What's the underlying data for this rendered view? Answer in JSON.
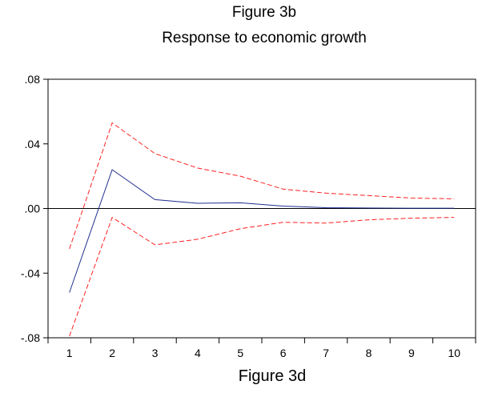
{
  "chart_data": {
    "type": "line",
    "title": "Figure 3b",
    "subtitle": "Response to economic growth",
    "footer": "Figure 3d",
    "x": [
      1,
      2,
      3,
      4,
      5,
      6,
      7,
      8,
      9,
      10
    ],
    "x_tick_labels": [
      "1",
      "2",
      "3",
      "4",
      "5",
      "6",
      "7",
      "8",
      "9",
      "10"
    ],
    "y_tick_labels": [
      ".08",
      ".04",
      ".00",
      "-.04",
      "-.08"
    ],
    "y_ticks": [
      0.08,
      0.04,
      0.0,
      -0.04,
      -0.08
    ],
    "ylim": [
      -0.08,
      0.08
    ],
    "xlim": [
      0.5,
      10.5
    ],
    "zero_line": true,
    "series": [
      {
        "style": "solid",
        "color": "#1f2f8f",
        "values": [
          -0.052,
          0.024,
          0.0055,
          0.0032,
          0.0035,
          0.0015,
          0.0005,
          0.0003,
          0.0002,
          0.0002
        ]
      },
      {
        "style": "dashed",
        "color": "#ff2020",
        "values": [
          -0.025,
          0.053,
          0.034,
          0.025,
          0.02,
          0.012,
          0.0095,
          0.008,
          0.0065,
          0.006
        ]
      },
      {
        "style": "dashed",
        "color": "#ff2020",
        "values": [
          -0.079,
          -0.0055,
          -0.0225,
          -0.019,
          -0.0125,
          -0.0085,
          -0.009,
          -0.007,
          -0.006,
          -0.0055
        ]
      }
    ]
  }
}
